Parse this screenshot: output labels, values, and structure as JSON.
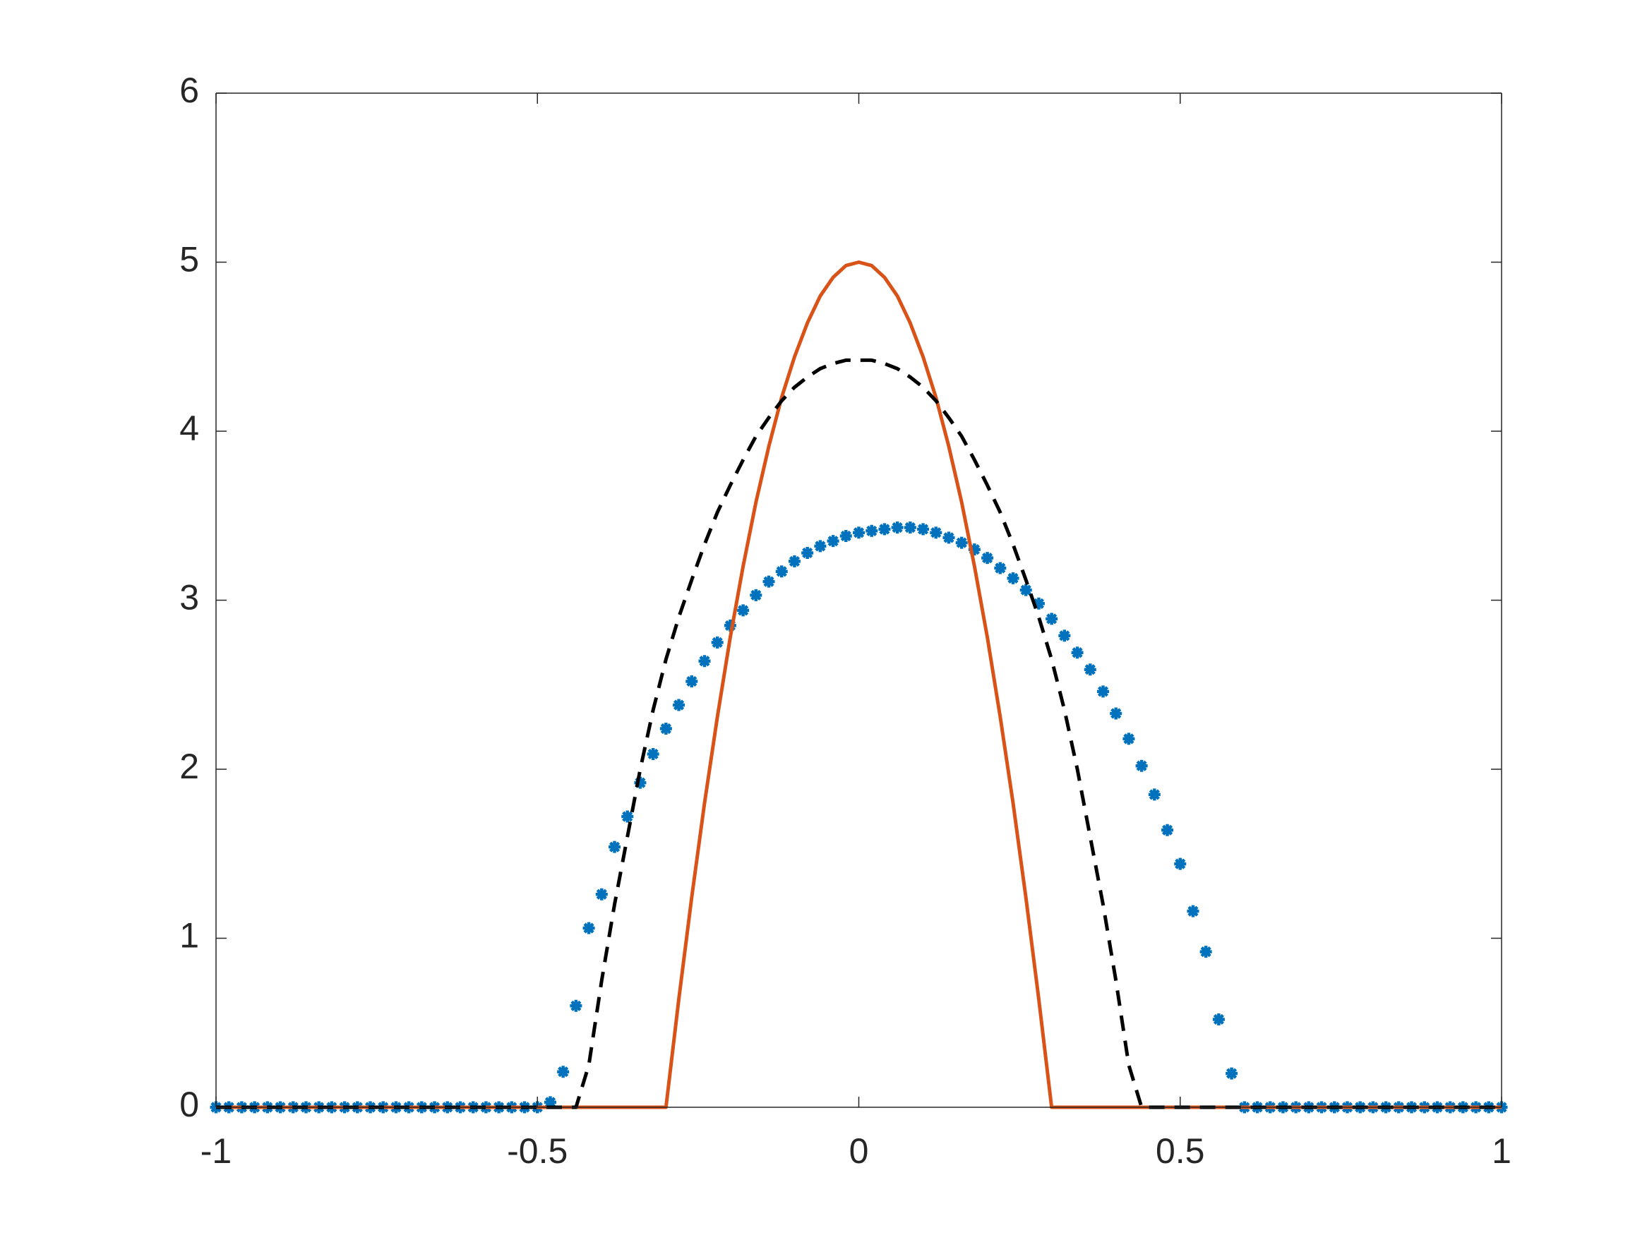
{
  "chart_data": {
    "type": "line",
    "x": [
      -1,
      -0.98,
      -0.96,
      -0.94,
      -0.92,
      -0.9,
      -0.88,
      -0.86,
      -0.84,
      -0.82,
      -0.8,
      -0.78,
      -0.76,
      -0.74,
      -0.72,
      -0.7,
      -0.68,
      -0.66,
      -0.64,
      -0.62,
      -0.6,
      -0.58,
      -0.56,
      -0.54,
      -0.52,
      -0.5,
      -0.48,
      -0.46,
      -0.44,
      -0.42,
      -0.4,
      -0.38,
      -0.36,
      -0.34,
      -0.32,
      -0.3,
      -0.28,
      -0.26,
      -0.24,
      -0.22,
      -0.2,
      -0.18,
      -0.16,
      -0.14,
      -0.12,
      -0.1,
      -0.08,
      -0.06,
      -0.04,
      -0.02,
      0,
      0.02,
      0.04,
      0.06,
      0.08,
      0.1,
      0.12,
      0.14,
      0.16,
      0.18,
      0.2,
      0.22,
      0.24,
      0.26,
      0.28,
      0.3,
      0.32,
      0.34,
      0.36,
      0.38,
      0.4,
      0.42,
      0.44,
      0.46,
      0.48,
      0.5,
      0.52,
      0.54,
      0.56,
      0.58,
      0.6,
      0.62,
      0.64,
      0.66,
      0.68,
      0.7,
      0.72,
      0.74,
      0.76,
      0.78,
      0.8,
      0.82,
      0.84,
      0.86,
      0.88,
      0.9,
      0.92,
      0.94,
      0.96,
      0.98,
      1
    ],
    "series": [
      {
        "color": "#0072bd",
        "line_style": "none",
        "marker": "*",
        "values": [
          0,
          0,
          0,
          0,
          0,
          0,
          0,
          0,
          0,
          0,
          0,
          0,
          0,
          0,
          0,
          0,
          0,
          0,
          0,
          0,
          0,
          0,
          0,
          0,
          0,
          0,
          0.03,
          0.21,
          0.6,
          1.06,
          1.26,
          1.54,
          1.72,
          1.92,
          2.09,
          2.24,
          2.38,
          2.52,
          2.64,
          2.75,
          2.85,
          2.94,
          3.03,
          3.11,
          3.17,
          3.23,
          3.28,
          3.32,
          3.35,
          3.38,
          3.4,
          3.41,
          3.42,
          3.43,
          3.43,
          3.42,
          3.4,
          3.37,
          3.34,
          3.3,
          3.25,
          3.19,
          3.13,
          3.06,
          2.98,
          2.89,
          2.79,
          2.69,
          2.59,
          2.46,
          2.33,
          2.18,
          2.02,
          1.85,
          1.64,
          1.44,
          1.16,
          0.92,
          0.52,
          0.2,
          0,
          0,
          0,
          0,
          0,
          0,
          0,
          0,
          0,
          0,
          0,
          0,
          0,
          0,
          0,
          0,
          0,
          0,
          0,
          0,
          0
        ]
      },
      {
        "color": "#d95319",
        "line_style": "-",
        "marker": "none",
        "values": [
          0,
          0,
          0,
          0,
          0,
          0,
          0,
          0,
          0,
          0,
          0,
          0,
          0,
          0,
          0,
          0,
          0,
          0,
          0,
          0,
          0,
          0,
          0,
          0,
          0,
          0,
          0,
          0,
          0,
          0,
          0,
          0,
          0,
          0,
          0,
          0,
          0.64,
          1.24,
          1.8,
          2.31,
          2.78,
          3.2,
          3.58,
          3.91,
          4.2,
          4.44,
          4.64,
          4.8,
          4.91,
          4.98,
          5,
          4.98,
          4.91,
          4.8,
          4.64,
          4.44,
          4.2,
          3.91,
          3.58,
          3.2,
          2.78,
          2.31,
          1.8,
          1.24,
          0.64,
          0,
          0,
          0,
          0,
          0,
          0,
          0,
          0,
          0,
          0,
          0,
          0,
          0,
          0,
          0,
          0,
          0,
          0,
          0,
          0,
          0,
          0,
          0,
          0,
          0,
          0,
          0,
          0,
          0,
          0,
          0,
          0,
          0,
          0,
          0,
          0
        ]
      },
      {
        "color": "#000000",
        "line_style": "--",
        "marker": "none",
        "values": [
          0,
          0,
          0,
          0,
          0,
          0,
          0,
          0,
          0,
          0,
          0,
          0,
          0,
          0,
          0,
          0,
          0,
          0,
          0,
          0,
          0,
          0,
          0,
          0,
          0,
          0,
          0,
          0,
          0,
          0.25,
          0.75,
          1.2,
          1.6,
          2.0,
          2.35,
          2.65,
          2.9,
          3.12,
          3.33,
          3.52,
          3.68,
          3.83,
          3.97,
          4.08,
          4.18,
          4.26,
          4.32,
          4.37,
          4.4,
          4.42,
          4.42,
          4.42,
          4.4,
          4.37,
          4.32,
          4.26,
          4.18,
          4.08,
          3.97,
          3.83,
          3.68,
          3.52,
          3.33,
          3.12,
          2.9,
          2.65,
          2.35,
          2.0,
          1.6,
          1.2,
          0.75,
          0.25,
          0,
          0,
          0,
          0,
          0,
          0,
          0,
          0,
          0,
          0,
          0,
          0,
          0,
          0,
          0,
          0,
          0,
          0,
          0,
          0,
          0,
          0,
          0,
          0,
          0,
          0,
          0,
          0,
          0
        ]
      }
    ],
    "xlim": [
      -1,
      1
    ],
    "xticks": [
      -1,
      -0.5,
      0,
      0.5,
      1
    ],
    "ylim": [
      0,
      6
    ],
    "yticks": [
      0,
      1,
      2,
      3,
      4,
      5,
      6
    ],
    "grid": false,
    "box": true
  }
}
